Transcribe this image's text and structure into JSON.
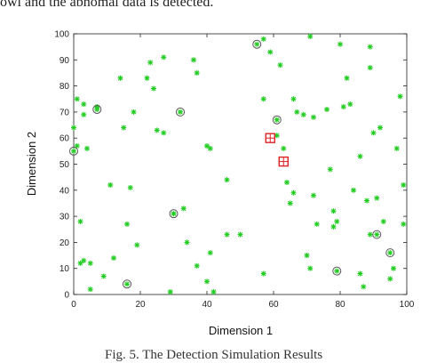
{
  "top_fragment": "owi and the abnomal data is detected.",
  "caption": "Fig. 5. The Detection Simulation Results",
  "chart_data": {
    "type": "scatter",
    "title": "",
    "xlabel": "Dimension 1",
    "ylabel": "Dimension 2",
    "xlim": [
      0,
      100
    ],
    "ylim": [
      0,
      100
    ],
    "xticks": [
      "0",
      "20",
      "40",
      "60",
      "80",
      "100"
    ],
    "yticks": [
      "0",
      "10",
      "20",
      "30",
      "40",
      "50",
      "60",
      "70",
      "80",
      "90",
      "100"
    ],
    "grid": false,
    "colors": {
      "normal": "#22cc22",
      "highlight": "#555555",
      "abnormal": "#dd2222"
    },
    "series": [
      {
        "marker": "green-star",
        "points": [
          [
            0,
            64
          ],
          [
            1,
            57
          ],
          [
            1,
            75
          ],
          [
            2,
            12
          ],
          [
            2,
            28
          ],
          [
            3,
            73
          ],
          [
            3,
            69
          ],
          [
            3,
            13
          ],
          [
            4,
            56
          ],
          [
            5,
            2
          ],
          [
            5,
            12
          ],
          [
            7,
            72
          ],
          [
            9,
            7
          ],
          [
            11,
            42
          ],
          [
            12,
            14
          ],
          [
            14,
            83
          ],
          [
            15,
            64
          ],
          [
            16,
            27
          ],
          [
            17,
            41
          ],
          [
            18,
            70
          ],
          [
            19,
            19
          ],
          [
            22,
            83
          ],
          [
            23,
            89
          ],
          [
            24,
            79
          ],
          [
            25,
            63
          ],
          [
            27,
            91
          ],
          [
            27,
            62
          ],
          [
            29,
            1
          ],
          [
            30,
            31
          ],
          [
            33,
            33
          ],
          [
            34,
            20
          ],
          [
            36,
            90
          ],
          [
            37,
            11
          ],
          [
            37,
            85
          ],
          [
            40,
            57
          ],
          [
            40,
            5
          ],
          [
            41,
            16
          ],
          [
            41,
            56
          ],
          [
            42,
            1
          ],
          [
            46,
            23
          ],
          [
            46,
            44
          ],
          [
            50,
            23
          ],
          [
            57,
            98
          ],
          [
            57,
            8
          ],
          [
            57,
            75
          ],
          [
            59,
            93
          ],
          [
            61,
            61
          ],
          [
            62,
            88
          ],
          [
            63,
            56
          ],
          [
            64,
            43
          ],
          [
            65,
            35
          ],
          [
            66,
            39
          ],
          [
            66,
            75
          ],
          [
            67,
            70
          ],
          [
            69,
            69
          ],
          [
            70,
            15
          ],
          [
            71,
            99
          ],
          [
            71,
            10
          ],
          [
            72,
            68
          ],
          [
            72,
            38
          ],
          [
            73,
            27
          ],
          [
            76,
            71
          ],
          [
            77,
            48
          ],
          [
            78,
            26
          ],
          [
            78,
            32
          ],
          [
            79,
            28
          ],
          [
            80,
            96
          ],
          [
            81,
            72
          ],
          [
            82,
            83
          ],
          [
            83,
            73
          ],
          [
            84,
            40
          ],
          [
            86,
            53
          ],
          [
            86,
            8
          ],
          [
            87,
            3
          ],
          [
            88,
            36
          ],
          [
            89,
            95
          ],
          [
            89,
            87
          ],
          [
            89,
            23
          ],
          [
            90,
            62
          ],
          [
            91,
            37
          ],
          [
            92,
            64
          ],
          [
            93,
            28
          ],
          [
            95,
            6
          ],
          [
            96,
            10
          ],
          [
            97,
            56
          ],
          [
            98,
            76
          ],
          [
            99,
            42
          ],
          [
            99,
            27
          ]
        ]
      },
      {
        "marker": "circled-star",
        "points": [
          [
            0,
            55
          ],
          [
            7,
            71
          ],
          [
            16,
            4
          ],
          [
            30,
            31
          ],
          [
            32,
            70
          ],
          [
            55,
            96
          ],
          [
            61,
            67
          ],
          [
            79,
            9
          ],
          [
            91,
            23
          ],
          [
            95,
            16
          ]
        ]
      },
      {
        "marker": "red-square",
        "points": [
          [
            59,
            60
          ],
          [
            63,
            51
          ]
        ]
      }
    ]
  }
}
